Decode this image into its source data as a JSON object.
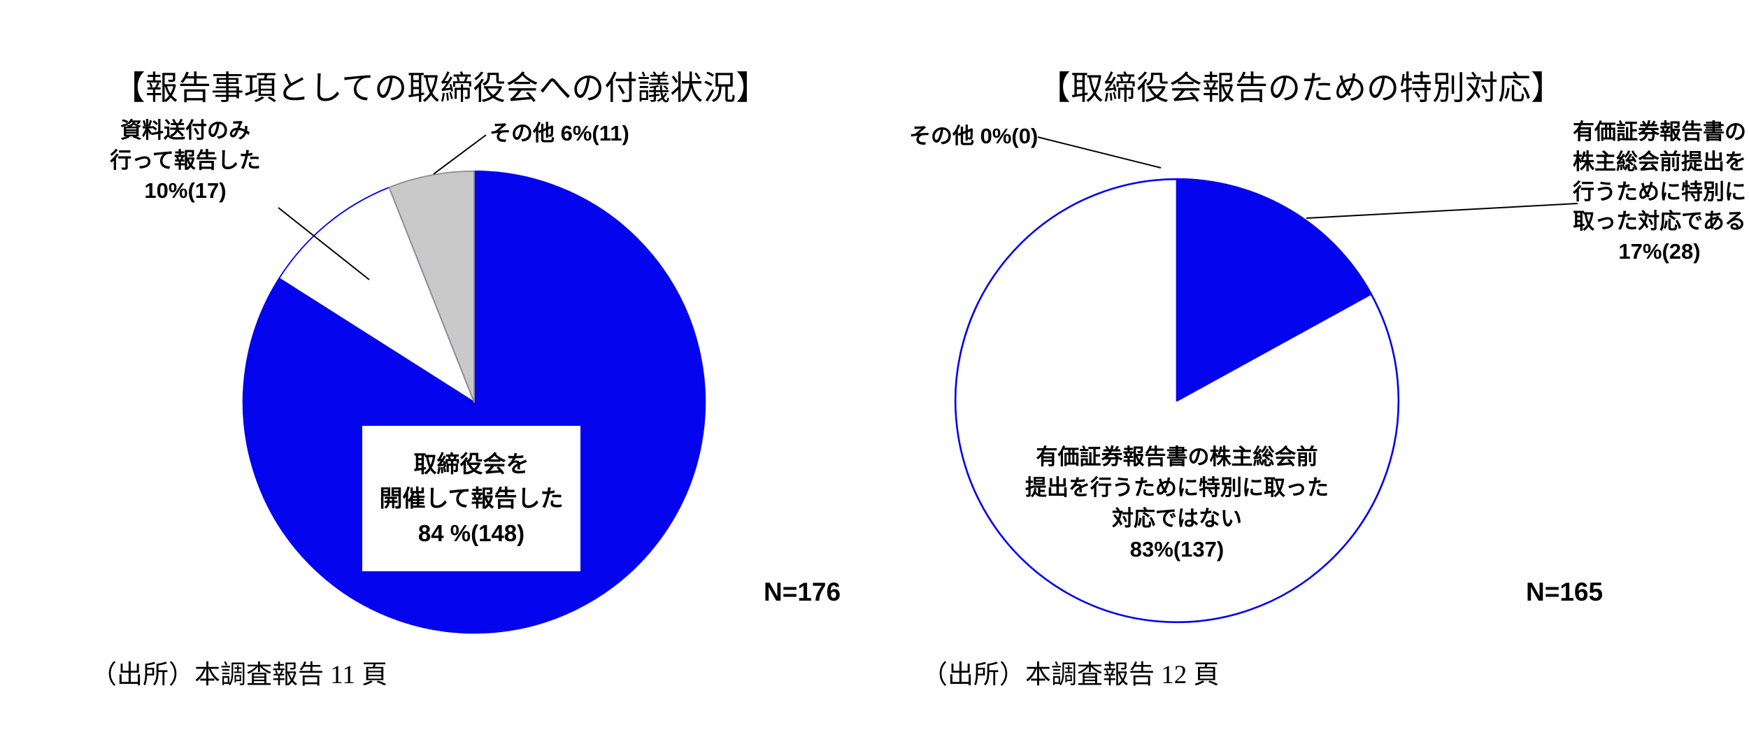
{
  "page": {
    "background": "#ffffff",
    "accent_blue": "#0404ee",
    "slice_gray": "#c9c9c9"
  },
  "chart_data": [
    {
      "type": "pie",
      "title": "【報告事項としての取締役会への付議状況】",
      "n_label": "N=176",
      "source": "（出所）本調査報告 11 頁",
      "legend_position": "callouts",
      "slices": [
        {
          "label": "取締役会を開催して報告した",
          "pct": 84,
          "count": 148,
          "color": "#0404ee",
          "stroke": "#0404ee",
          "callout": "取締役会を\n開催して報告した\n84 %(148)"
        },
        {
          "label": "資料送付のみ行って報告した",
          "pct": 10,
          "count": 17,
          "color": "#ffffff",
          "stroke": "#0404ee",
          "callout": "資料送付のみ\n行って報告した\n10%(17)"
        },
        {
          "label": "その他",
          "pct": 6,
          "count": 11,
          "color": "#c9c9c9",
          "stroke": "#8f8f8f",
          "callout": "その他  6%(11)"
        }
      ]
    },
    {
      "type": "pie",
      "title": "【取締役会報告のための特別対応】",
      "n_label": "N=165",
      "source": "（出所）本調査報告 12 頁",
      "legend_position": "callouts",
      "slices": [
        {
          "label": "有価証券報告書の株主総会前提出を行うために特別に取った対応である",
          "pct": 17,
          "count": 28,
          "color": "#0404ee",
          "stroke": "#0404ee",
          "callout": "有価証券報告書の\n株主総会前提出を\n行うために特別に\n取った対応である\n17%(28)"
        },
        {
          "label": "有価証券報告書の株主総会前提出を行うために特別に取った対応ではない",
          "pct": 83,
          "count": 137,
          "color": "#ffffff",
          "stroke": "#0404ee",
          "callout": "有価証券報告書の株主総会前\n提出を行うために特別に取った\n対応ではない\n83%(137)"
        },
        {
          "label": "その他",
          "pct": 0,
          "count": 0,
          "color": "#ffffff",
          "stroke": "#0404ee",
          "callout": "その他  0%(0)"
        }
      ]
    }
  ]
}
